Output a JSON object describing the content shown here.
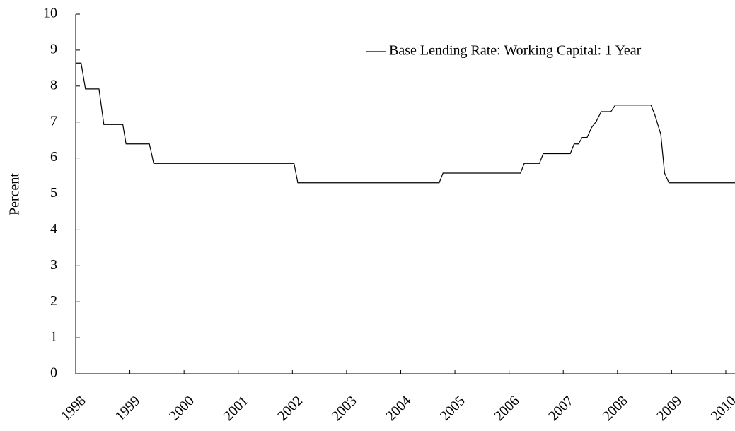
{
  "chart_data": {
    "type": "line",
    "y_label": "Percent",
    "legend": "upper right",
    "x": [
      1998.0,
      1998.1,
      1998.18,
      1998.43,
      1998.52,
      1998.87,
      1998.93,
      1999.36,
      1999.44,
      2002.03,
      2002.1,
      2004.71,
      2004.78,
      2006.21,
      2006.28,
      2006.56,
      2006.63,
      2007.13,
      2007.2,
      2007.28,
      2007.35,
      2007.44,
      2007.52,
      2007.61,
      2007.7,
      2007.88,
      2007.96,
      2008.62,
      2008.69,
      2008.8,
      2008.87,
      2008.95,
      2010.17
    ],
    "series": [
      {
        "name": "Base Lending Rate: Working Capital: 1 Year",
        "color": "#000000",
        "values": [
          8.64,
          8.64,
          7.92,
          7.92,
          6.93,
          6.93,
          6.39,
          6.39,
          5.85,
          5.85,
          5.31,
          5.31,
          5.58,
          5.58,
          5.85,
          5.85,
          6.12,
          6.12,
          6.39,
          6.39,
          6.57,
          6.57,
          6.84,
          7.02,
          7.29,
          7.29,
          7.47,
          7.47,
          7.2,
          6.66,
          5.58,
          5.31,
          5.31
        ]
      }
    ],
    "xlim": [
      1998,
      2010.17
    ],
    "xticks": [
      1998,
      1999,
      2000,
      2001,
      2002,
      2003,
      2004,
      2005,
      2006,
      2007,
      2008,
      2009,
      2010
    ],
    "ylim": [
      0,
      10
    ],
    "yticks": [
      0,
      1,
      2,
      3,
      4,
      5,
      6,
      7,
      8,
      9,
      10
    ]
  }
}
